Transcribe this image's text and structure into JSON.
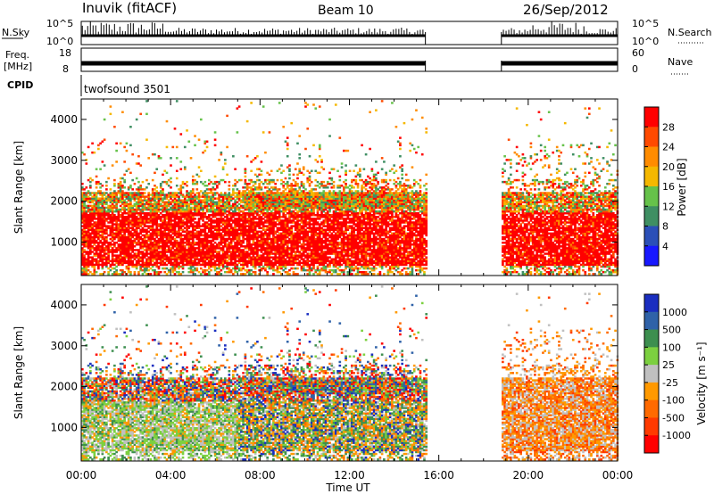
{
  "header": {
    "station": "Inuvik (fitACF)",
    "beam": "Beam 10",
    "date": "26/Sep/2012"
  },
  "panels": {
    "nsky": {
      "label": "N.Sky",
      "right_label": "N.Search",
      "left_ticks": [
        "10^5",
        "10^0"
      ],
      "right_ticks": [
        "10^5",
        "10^0"
      ]
    },
    "freq": {
      "label_line1": "Freq.",
      "label_line2": "[MHz]",
      "right_label": "Nave",
      "left_ticks": [
        "18",
        "8"
      ],
      "right_ticks": [
        "60",
        "0"
      ]
    },
    "cpid": {
      "label": "CPID",
      "program": "twofsound 3501"
    }
  },
  "colorbars": {
    "power": {
      "title": "Power [dB]",
      "ticks": [
        "28",
        "24",
        "20",
        "16",
        "12",
        "8",
        "4"
      ],
      "colors": [
        "#ff0000",
        "#ff4a00",
        "#ff8c00",
        "#f5b800",
        "#66c24a",
        "#3f8f63",
        "#2b4fb8",
        "#1818ff"
      ]
    },
    "velocity": {
      "title": "Velocity [m s⁻¹]",
      "ticks": [
        "1000",
        "500",
        "100",
        "25",
        "-25",
        "-100",
        "-500",
        "-1000"
      ],
      "colors": [
        "#1a2ec0",
        "#2f62a8",
        "#3d8f4f",
        "#7cd040",
        "#c0c0c0",
        "#ff9900",
        "#ff6a00",
        "#ff3a00",
        "#ff0000"
      ]
    }
  },
  "chart_data": [
    {
      "type": "heatmap",
      "name": "power",
      "title": "",
      "xlabel": "Time UT",
      "ylabel": "Slant Range [km]",
      "x_ticks": [
        "00:00",
        "04:00",
        "08:00",
        "12:00",
        "16:00",
        "20:00",
        "00:00"
      ],
      "xlim": [
        0,
        24
      ],
      "ylim": [
        180,
        4500
      ],
      "y_ticks": [
        1000,
        2000,
        3000,
        4000
      ],
      "data_gaps": [
        [
          15.4,
          18.8
        ]
      ],
      "main_echo_band_km": [
        400,
        2200
      ],
      "dominant_value_db": 28
    },
    {
      "type": "heatmap",
      "name": "velocity",
      "title": "",
      "xlabel": "Time UT",
      "ylabel": "Slant Range [km]",
      "x_ticks": [
        "00:00",
        "04:00",
        "08:00",
        "12:00",
        "16:00",
        "20:00",
        "00:00"
      ],
      "xlim": [
        0,
        24
      ],
      "ylim": [
        180,
        4500
      ],
      "y_ticks": [
        1000,
        2000,
        3000,
        4000
      ],
      "data_gaps": [
        [
          15.4,
          18.8
        ]
      ]
    }
  ]
}
